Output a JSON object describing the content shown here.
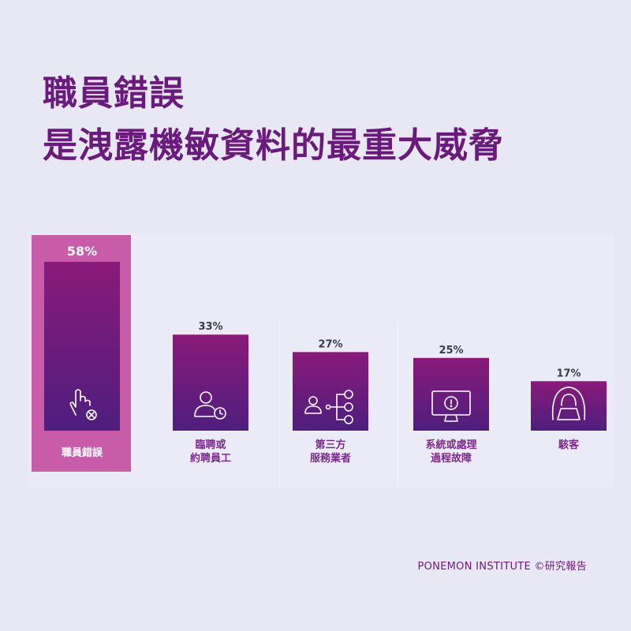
{
  "title": {
    "line1": "職員錯誤",
    "line2": "是洩露機敏資料的最重大威脅"
  },
  "colors": {
    "background": "#e8e8f4",
    "title": "#6a1a7c",
    "bar_top": "#8a1a7a",
    "bar_bottom": "#4e1e7e",
    "highlight_box": "#c85ca8",
    "category_text": "#7a2a8c"
  },
  "chart_data": {
    "type": "bar",
    "categories": [
      [
        "職員錯誤"
      ],
      [
        "臨聘或",
        "約聘員工"
      ],
      [
        "第三方",
        "服務業者"
      ],
      [
        "系統或處理",
        "過程故障"
      ],
      [
        "駭客"
      ]
    ],
    "values": [
      58,
      33,
      27,
      25,
      17
    ],
    "value_labels": [
      "58%",
      "33%",
      "27%",
      "25%",
      "17%"
    ],
    "icons": [
      "pointer-hand-x-icon",
      "person-clock-icon",
      "person-network-icon",
      "monitor-alert-icon",
      "hooded-hacker-icon"
    ],
    "highlighted_index": 0,
    "ylim": [
      0,
      58
    ],
    "grid": false,
    "legend": "none",
    "xlabel": "",
    "ylabel": ""
  },
  "source": "PONEMON INSTITUTE ©研究報告"
}
